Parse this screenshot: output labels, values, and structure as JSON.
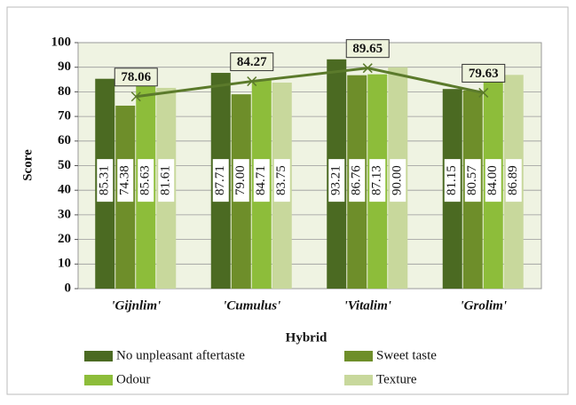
{
  "chart_data": {
    "type": "bar",
    "y_label": "Score",
    "x_label": "Hybrid",
    "categories": [
      "'Gijnlim'",
      "'Cumulus'",
      "'Vitalim'",
      "'Grolim'"
    ],
    "series": [
      {
        "name": "No unpleasant aftertaste",
        "color": "#4b6a22",
        "values": [
          85.31,
          87.71,
          93.21,
          81.15
        ],
        "value_labels": [
          "85.31",
          "87.71",
          "93.21",
          "81.15"
        ]
      },
      {
        "name": "Sweet taste",
        "color": "#6e8e2a",
        "values": [
          74.38,
          79.0,
          86.76,
          80.57
        ],
        "value_labels": [
          "74.38",
          "79.00",
          "86.76",
          "80.57"
        ]
      },
      {
        "name": "Odour",
        "color": "#8dbd3a",
        "values": [
          85.63,
          84.71,
          87.13,
          84.0
        ],
        "value_labels": [
          "85.63",
          "84.71",
          "87.13",
          "84.00"
        ]
      },
      {
        "name": "Texture",
        "color": "#c8d89c",
        "values": [
          81.61,
          83.75,
          90.0,
          86.89
        ],
        "value_labels": [
          "81.61",
          "83.75",
          "90.00",
          "86.89"
        ]
      }
    ],
    "line": {
      "color": "#5b7a2b",
      "values": [
        78.06,
        84.27,
        89.65,
        79.63
      ]
    },
    "ylim": [
      0,
      100
    ],
    "yticks": [
      0,
      10,
      20,
      30,
      40,
      50,
      60,
      70,
      80,
      90,
      100
    ],
    "grid": true
  }
}
